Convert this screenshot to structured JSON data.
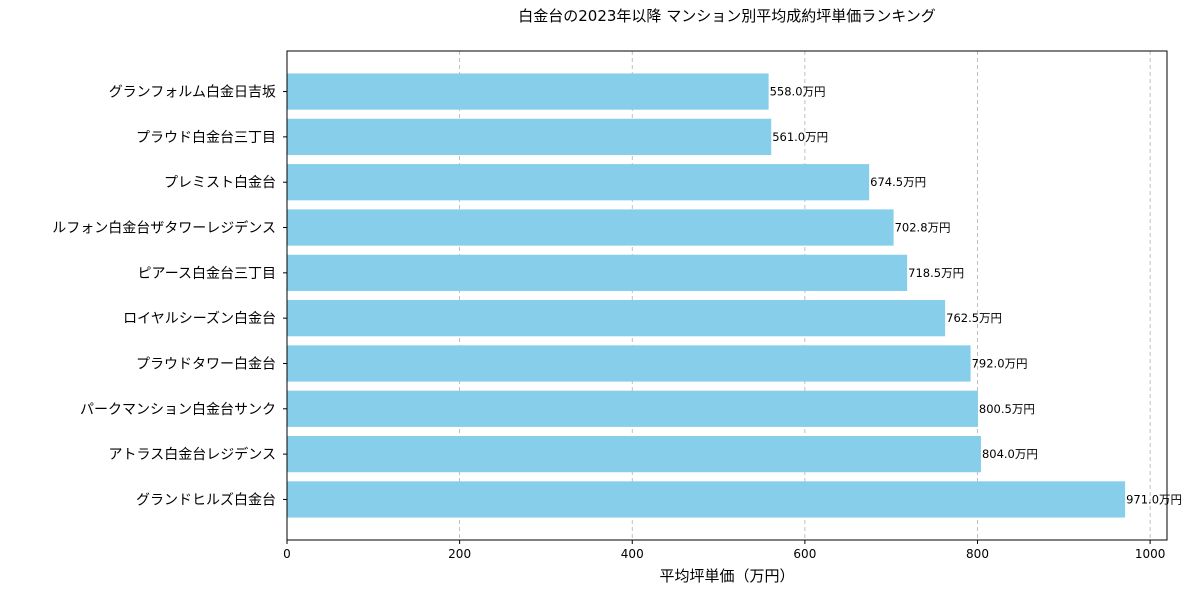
{
  "chart_data": {
    "type": "bar",
    "orientation": "horizontal",
    "title": "白金台の2023年以降 マンション別平均成約坪単価ランキング",
    "xlabel": "平均坪単価（万円）",
    "ylabel": "",
    "categories": [
      "グランドヒルズ白金台",
      "アトラス白金台レジデンス",
      "パークマンション白金台サンク",
      "プラウドタワー白金台",
      "ロイヤルシーズン白金台",
      "ピアース白金台三丁目",
      "ルフォン白金台ザタワーレジデンス",
      "プレミスト白金台",
      "プラウド白金台三丁目",
      "グランフォルム白金日吉坂"
    ],
    "values": [
      971.0,
      804.0,
      800.5,
      792.0,
      762.5,
      718.5,
      702.8,
      674.5,
      561.0,
      558.0
    ],
    "data_labels": [
      "971.0万円",
      "804.0万円",
      "800.5万円",
      "792.0万円",
      "762.5万円",
      "718.5万円",
      "702.8万円",
      "674.5万円",
      "561.0万円",
      "558.0万円"
    ],
    "xlim": [
      0,
      1019.55
    ],
    "xticks": [
      "0",
      "200",
      "400",
      "600",
      "800",
      "1000"
    ],
    "grid": "x, dashed",
    "bar_color": "#87ceeb"
  }
}
